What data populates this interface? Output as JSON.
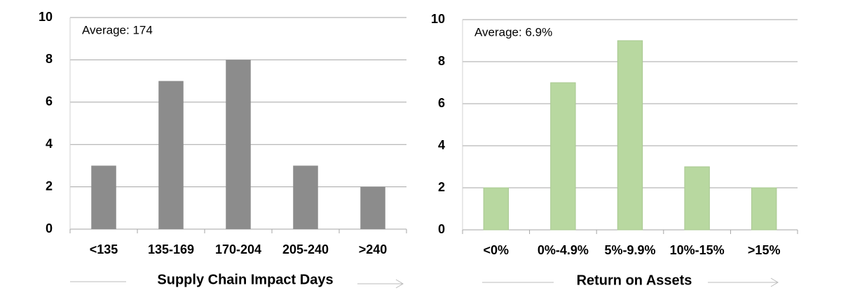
{
  "chart_data": [
    {
      "type": "bar",
      "annotation": "Average: 174",
      "x_label": "Supply Chain Impact Days",
      "categories": [
        "<135",
        "135-169",
        "170-204",
        "205-240",
        ">240"
      ],
      "values": [
        3,
        7,
        8,
        3,
        2
      ],
      "color": "#8c8c8c",
      "ylim": [
        0,
        10
      ],
      "yticks": [
        0,
        2,
        4,
        6,
        8,
        10
      ],
      "grid": true
    },
    {
      "type": "bar",
      "annotation": "Average: 6.9%",
      "x_label": "Return on Assets",
      "categories": [
        "<0%",
        "0%-4.9%",
        "5%-9.9%",
        "10%-15%",
        ">15%"
      ],
      "values": [
        2,
        7,
        9,
        3,
        2
      ],
      "color": "#b8d8a0",
      "ylim": [
        0,
        10
      ],
      "yticks": [
        0,
        2,
        4,
        6,
        8,
        10
      ],
      "grid": true
    }
  ]
}
